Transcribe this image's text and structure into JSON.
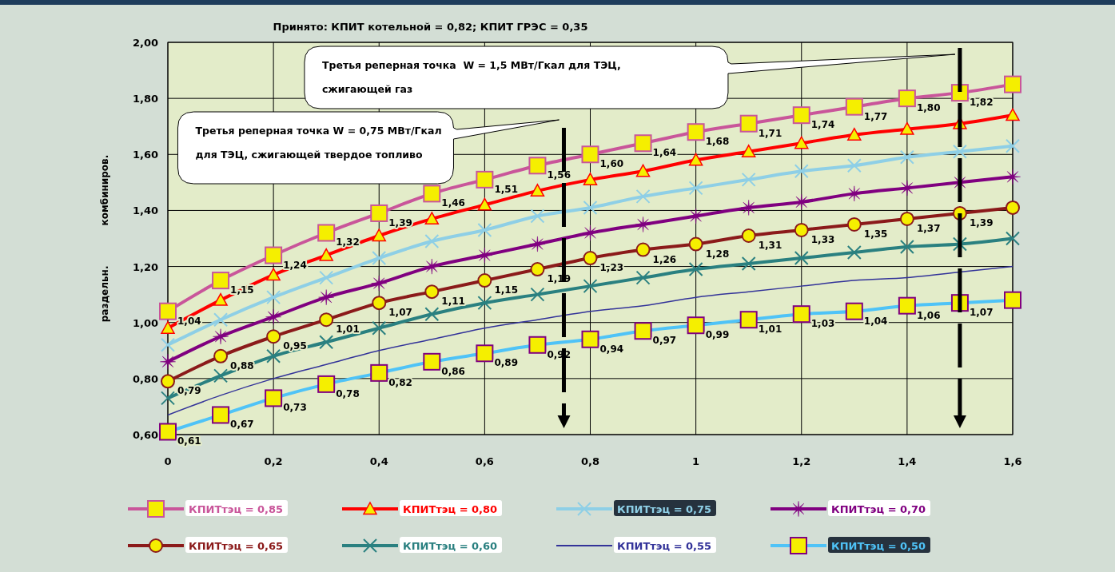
{
  "chart_data": {
    "type": "line",
    "title": "Принято: КПИТ котельной = 0,82; КПИТ ГРЭС = 0,35",
    "ylabel": "раздельн.            комбиниров.",
    "x": [
      0,
      0.1,
      0.2,
      0.3,
      0.4,
      0.5,
      0.6,
      0.7,
      0.8,
      0.9,
      1,
      1.1,
      1.2,
      1.3,
      1.4,
      1.5,
      1.6
    ],
    "xlim": [
      0,
      1.6
    ],
    "xticks": [
      {
        "value": 0,
        "label": "0"
      },
      {
        "value": 0.2,
        "label": "0,2"
      },
      {
        "value": 0.4,
        "label": "0,4"
      },
      {
        "value": 0.6,
        "label": "0,6"
      },
      {
        "value": 0.8,
        "label": "0,8"
      },
      {
        "value": 1,
        "label": "1"
      },
      {
        "value": 1.2,
        "label": "1,2"
      },
      {
        "value": 1.4,
        "label": "1,4"
      },
      {
        "value": 1.6,
        "label": "1,6"
      }
    ],
    "ylim": [
      0.6,
      2.0
    ],
    "yticks": [
      {
        "value": 0.6,
        "label": "0,60"
      },
      {
        "value": 0.8,
        "label": "0,80"
      },
      {
        "value": 1.0,
        "label": "1,00"
      },
      {
        "value": 1.2,
        "label": "1,20"
      },
      {
        "value": 1.4,
        "label": "1,40"
      },
      {
        "value": 1.6,
        "label": "1,60"
      },
      {
        "value": 1.8,
        "label": "1,80"
      },
      {
        "value": 2.0,
        "label": "2,00"
      }
    ],
    "grid": true,
    "legend": "bottom",
    "series": [
      {
        "name": "КПИТтэц = 0,85",
        "color": "#c9559a",
        "marker": "square",
        "values": [
          1.04,
          1.15,
          1.24,
          1.32,
          1.39,
          1.46,
          1.51,
          1.56,
          1.6,
          1.64,
          1.68,
          1.71,
          1.74,
          1.77,
          1.8,
          1.82,
          1.85
        ],
        "value_labels": [
          "1,04",
          "1,15",
          "1,24",
          "1,32",
          "1,39",
          "1,46",
          "1,51",
          "1,56",
          "1,60",
          "1,64",
          "1,68",
          "1,71",
          "1,74",
          "1,77",
          "1,80",
          "1,82",
          null
        ]
      },
      {
        "name": "КПИТтэц = 0,80",
        "color": "#ff0000",
        "marker": "triangle",
        "values": [
          0.98,
          1.08,
          1.17,
          1.24,
          1.31,
          1.37,
          1.42,
          1.47,
          1.51,
          1.54,
          1.58,
          1.61,
          1.64,
          1.67,
          1.69,
          1.71,
          1.74
        ]
      },
      {
        "name": "КПИТтэц = 0,75",
        "color": "#8ecfe6",
        "marker": "cross",
        "values": [
          0.92,
          1.01,
          1.09,
          1.16,
          1.23,
          1.29,
          1.33,
          1.38,
          1.41,
          1.45,
          1.48,
          1.51,
          1.54,
          1.56,
          1.59,
          1.61,
          1.63
        ]
      },
      {
        "name": "КПИТтэц = 0,70",
        "color": "#800080",
        "marker": "star",
        "values": [
          0.86,
          0.95,
          1.02,
          1.09,
          1.14,
          1.2,
          1.24,
          1.28,
          1.32,
          1.35,
          1.38,
          1.41,
          1.43,
          1.46,
          1.48,
          1.5,
          1.52
        ]
      },
      {
        "name": "КПИТтэц = 0,65",
        "color": "#8b1a1a",
        "marker": "circle",
        "values": [
          0.79,
          0.88,
          0.95,
          1.01,
          1.07,
          1.11,
          1.15,
          1.19,
          1.23,
          1.26,
          1.28,
          1.31,
          1.33,
          1.35,
          1.37,
          1.39,
          1.41
        ],
        "value_labels": [
          "0,79",
          "0,88",
          "0,95",
          "1,01",
          "1,07",
          "1,11",
          "1,15",
          "1,19",
          "1,23",
          "1,26",
          "1,28",
          "1,31",
          "1,33",
          "1,35",
          "1,37",
          "1,39",
          null
        ]
      },
      {
        "name": "КПИТтэц = 0,60",
        "color": "#2a8080",
        "marker": "cross",
        "values": [
          0.73,
          0.81,
          0.88,
          0.93,
          0.98,
          1.03,
          1.07,
          1.1,
          1.13,
          1.16,
          1.19,
          1.21,
          1.23,
          1.25,
          1.27,
          1.28,
          1.3
        ]
      },
      {
        "name": "КПИТтэц = 0,55",
        "color": "#333399",
        "marker": "none",
        "values": [
          0.67,
          0.74,
          0.8,
          0.85,
          0.9,
          0.94,
          0.98,
          1.01,
          1.04,
          1.06,
          1.09,
          1.11,
          1.13,
          1.15,
          1.16,
          1.18,
          1.2
        ]
      },
      {
        "name": "КПИТтэц = 0,50",
        "color": "#4fc3f7",
        "marker": "square",
        "values": [
          0.61,
          0.67,
          0.73,
          0.78,
          0.82,
          0.86,
          0.89,
          0.92,
          0.94,
          0.97,
          0.99,
          1.01,
          1.03,
          1.04,
          1.06,
          1.07,
          1.08
        ],
        "value_labels": [
          "0,61",
          "0,67",
          "0,73",
          "0,78",
          "0,82",
          "0,86",
          "0,89",
          "0,92",
          "0,94",
          "0,97",
          "0,99",
          "1,01",
          "1,03",
          "1,04",
          "1,06",
          "1,07",
          null
        ]
      }
    ],
    "ref_lines": [
      {
        "axis": "x",
        "value": 0.75,
        "label": "Третья реперная точка W = 0,75 МВт/Гкал для ТЭЦ, сжигающей твердое топливо",
        "color": "#000000",
        "line_style": "dashed"
      },
      {
        "axis": "x",
        "value": 1.5,
        "label": "Третья реперная точка  W = 1,5 МВт/Гкал для ТЭЦ, сжигающей газ",
        "color": "#000000",
        "line_style": "dashed"
      }
    ]
  }
}
